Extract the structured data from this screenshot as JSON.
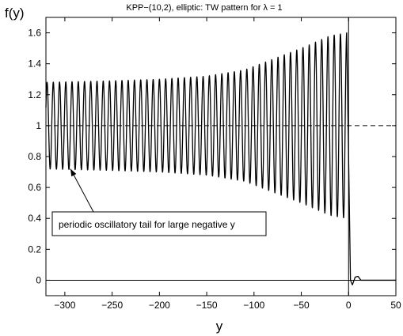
{
  "chart_data": {
    "type": "line",
    "title": "KPP−(10,2), elliptic: TW pattern for λ = 1",
    "xlabel": "y",
    "ylabel": "f(y)",
    "xlim": [
      -320,
      50
    ],
    "ylim": [
      -0.1,
      1.7
    ],
    "x_ticks": [
      -300,
      -250,
      -200,
      -150,
      -100,
      -50,
      0,
      50
    ],
    "x_tick_labels": [
      "−300",
      "−250",
      "−200",
      "−150",
      "−100",
      "−50",
      "0",
      "50"
    ],
    "y_ticks": [
      0,
      0.2,
      0.4,
      0.6,
      0.8,
      1,
      1.2,
      1.4,
      1.6
    ],
    "y_tick_labels": [
      "0",
      "0.2",
      "0.4",
      "0.6",
      "0.8",
      "1",
      "1.2",
      "1.4",
      "1.6"
    ],
    "grid": false,
    "legend": "none",
    "series": [
      {
        "style": "solid",
        "oscillation": {
          "x_start": -320,
          "x_end": -2,
          "period": 6.6,
          "center": 1.0,
          "amplitude": [
            {
              "x": -320,
              "a": 0.28
            },
            {
              "x": -250,
              "a": 0.29
            },
            {
              "x": -200,
              "a": 0.3
            },
            {
              "x": -150,
              "a": 0.32
            },
            {
              "x": -110,
              "a": 0.36
            },
            {
              "x": -80,
              "a": 0.43
            },
            {
              "x": -50,
              "a": 0.5
            },
            {
              "x": -20,
              "a": 0.58
            },
            {
              "x": -2,
              "a": 0.6
            }
          ]
        },
        "front": [
          {
            "x": -2,
            "y": 1.6
          },
          {
            "x": 0,
            "y": 0.8
          },
          {
            "x": 2,
            "y": 0.0
          },
          {
            "x": 4,
            "y": -0.03
          },
          {
            "x": 7,
            "y": 0.02
          },
          {
            "x": 10,
            "y": 0.025
          },
          {
            "x": 13,
            "y": 0.0
          },
          {
            "x": 50,
            "y": 0.0
          }
        ]
      }
    ],
    "reference_lines": [
      {
        "orientation": "horizontal",
        "y": 1,
        "style": "dashed"
      },
      {
        "orientation": "horizontal",
        "y": 0,
        "style": "solid"
      },
      {
        "orientation": "vertical",
        "x": 0,
        "style": "solid"
      }
    ],
    "annotations": [
      {
        "text": "periodic oscillatory tail for large negative y",
        "arrow_to": {
          "x": -294,
          "y": 0.72
        }
      }
    ]
  }
}
